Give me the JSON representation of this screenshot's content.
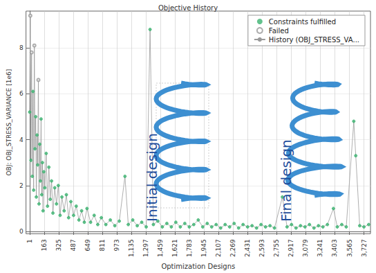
{
  "chart_data": {
    "type": "scatter",
    "title": "Objective History",
    "x_label": "Optimization Designs",
    "y_label": "OBJ: OBJ_STRESS_VARIANCE [1e6]",
    "xlim": [
      -40,
      3800
    ],
    "xticks": [
      1,
      163,
      325,
      487,
      649,
      811,
      973,
      1135,
      1297,
      1459,
      1621,
      1783,
      1945,
      2107,
      2269,
      2431,
      2593,
      2755,
      2917,
      3079,
      3241,
      3403,
      3565,
      3727
    ],
    "ylim": [
      -0.1,
      9.6
    ],
    "yticks": [
      0,
      2,
      4,
      6,
      8
    ],
    "grid": true,
    "legend": "upper right",
    "annotations": [
      "Initial design",
      "Final design"
    ],
    "series": [
      {
        "name": "Constraints fulfilled",
        "type": "scatter",
        "marker": "circle",
        "color": "#3cb371",
        "x": [
          1,
          15,
          30,
          38,
          45,
          60,
          68,
          75,
          83,
          90,
          105,
          113,
          120,
          128,
          135,
          143,
          150,
          158,
          170,
          185,
          200,
          215,
          230,
          245,
          260,
          280,
          300,
          320,
          340,
          360,
          385,
          410,
          435,
          460,
          490,
          520,
          550,
          580,
          610,
          640,
          680,
          720,
          760,
          800,
          850,
          900,
          950,
          1000,
          1063,
          1100,
          1150,
          1200,
          1250,
          1300,
          1343,
          1380,
          1430,
          1480,
          1530,
          1580,
          1630,
          1680,
          1730,
          1780,
          1830,
          1880,
          1930,
          1980,
          2030,
          2080,
          2130,
          2180,
          2230,
          2280,
          2330,
          2380,
          2430,
          2480,
          2530,
          2580,
          2630,
          2680,
          2730,
          2818,
          2870,
          2920,
          2970,
          3020,
          3070,
          3120,
          3170,
          3220,
          3270,
          3320,
          3387,
          3430,
          3480,
          3530,
          3614,
          3636,
          3680,
          3727,
          3780
        ],
        "values": [
          5.2,
          3.1,
          2.4,
          6.1,
          1.8,
          3.6,
          5.0,
          1.5,
          4.2,
          2.9,
          1.2,
          3.8,
          2.2,
          4.9,
          1.6,
          3.0,
          0.9,
          2.6,
          1.9,
          3.4,
          1.1,
          2.8,
          1.4,
          2.2,
          0.8,
          1.9,
          1.2,
          2.0,
          0.7,
          1.5,
          0.9,
          1.6,
          0.6,
          1.3,
          0.7,
          1.1,
          0.5,
          0.9,
          0.4,
          1.0,
          0.4,
          0.7,
          0.3,
          0.6,
          0.3,
          0.5,
          0.25,
          0.45,
          2.4,
          0.3,
          0.5,
          0.25,
          0.4,
          0.2,
          8.8,
          0.3,
          0.45,
          0.2,
          0.35,
          0.2,
          0.4,
          0.2,
          0.35,
          0.2,
          0.3,
          0.5,
          0.2,
          0.35,
          0.2,
          0.3,
          0.15,
          0.3,
          0.2,
          0.35,
          0.15,
          0.3,
          0.2,
          0.25,
          0.15,
          0.3,
          0.2,
          0.25,
          0.15,
          1.5,
          0.2,
          0.3,
          0.15,
          0.25,
          0.2,
          0.3,
          0.15,
          0.25,
          0.2,
          0.3,
          1.0,
          0.2,
          0.3,
          0.2,
          4.8,
          3.3,
          0.25,
          0.2,
          0.3
        ]
      },
      {
        "name": "Failed",
        "type": "scatter",
        "marker": "hollow circle",
        "color": "#999999",
        "x": [
          8,
          22,
          53,
          98
        ],
        "values": [
          9.4,
          7.8,
          8.1,
          6.6
        ]
      },
      {
        "name": "History (OBJ_STRESS_VA...",
        "type": "line",
        "line_style": "solid",
        "color": "#9a9a9a",
        "x": [
          1,
          8,
          15,
          22,
          30,
          38,
          45,
          53,
          60,
          68,
          75,
          83,
          90,
          98,
          105,
          113,
          120,
          128,
          135,
          143,
          150,
          158,
          170,
          185,
          200,
          215,
          230,
          245,
          260,
          280,
          300,
          320,
          340,
          360,
          385,
          410,
          435,
          460,
          490,
          520,
          550,
          580,
          610,
          640,
          680,
          720,
          760,
          800,
          850,
          900,
          950,
          1000,
          1063,
          1100,
          1150,
          1200,
          1250,
          1300,
          1343,
          1380,
          1430,
          1480,
          1530,
          1580,
          1630,
          1680,
          1730,
          1780,
          1830,
          1880,
          1930,
          1980,
          2030,
          2080,
          2130,
          2180,
          2230,
          2280,
          2330,
          2380,
          2430,
          2480,
          2530,
          2580,
          2630,
          2680,
          2730,
          2818,
          2870,
          2920,
          2970,
          3020,
          3070,
          3120,
          3170,
          3220,
          3270,
          3320,
          3387,
          3430,
          3480,
          3530,
          3614,
          3636,
          3680,
          3727,
          3780
        ],
        "values": [
          5.2,
          9.4,
          3.1,
          7.8,
          2.4,
          6.1,
          1.8,
          8.1,
          3.6,
          5.0,
          1.5,
          4.2,
          2.9,
          6.6,
          1.2,
          3.8,
          2.2,
          4.9,
          1.6,
          3.0,
          0.9,
          2.6,
          1.9,
          3.4,
          1.1,
          2.8,
          1.4,
          2.2,
          0.8,
          1.9,
          1.2,
          2.0,
          0.7,
          1.5,
          0.9,
          1.6,
          0.6,
          1.3,
          0.7,
          1.1,
          0.5,
          0.9,
          0.4,
          1.0,
          0.4,
          0.7,
          0.3,
          0.6,
          0.3,
          0.5,
          0.25,
          0.45,
          2.4,
          0.3,
          0.5,
          0.25,
          0.4,
          0.2,
          8.8,
          0.3,
          0.45,
          0.2,
          0.35,
          0.2,
          0.4,
          0.2,
          0.35,
          0.2,
          0.3,
          0.5,
          0.2,
          0.35,
          0.2,
          0.3,
          0.15,
          0.3,
          0.2,
          0.35,
          0.15,
          0.3,
          0.2,
          0.25,
          0.15,
          0.3,
          0.2,
          0.25,
          0.15,
          1.5,
          0.2,
          0.3,
          0.15,
          0.25,
          0.2,
          0.3,
          0.15,
          0.25,
          0.2,
          0.3,
          1.0,
          0.2,
          0.3,
          0.2,
          4.8,
          3.3,
          0.25,
          0.2,
          0.3
        ]
      }
    ]
  }
}
